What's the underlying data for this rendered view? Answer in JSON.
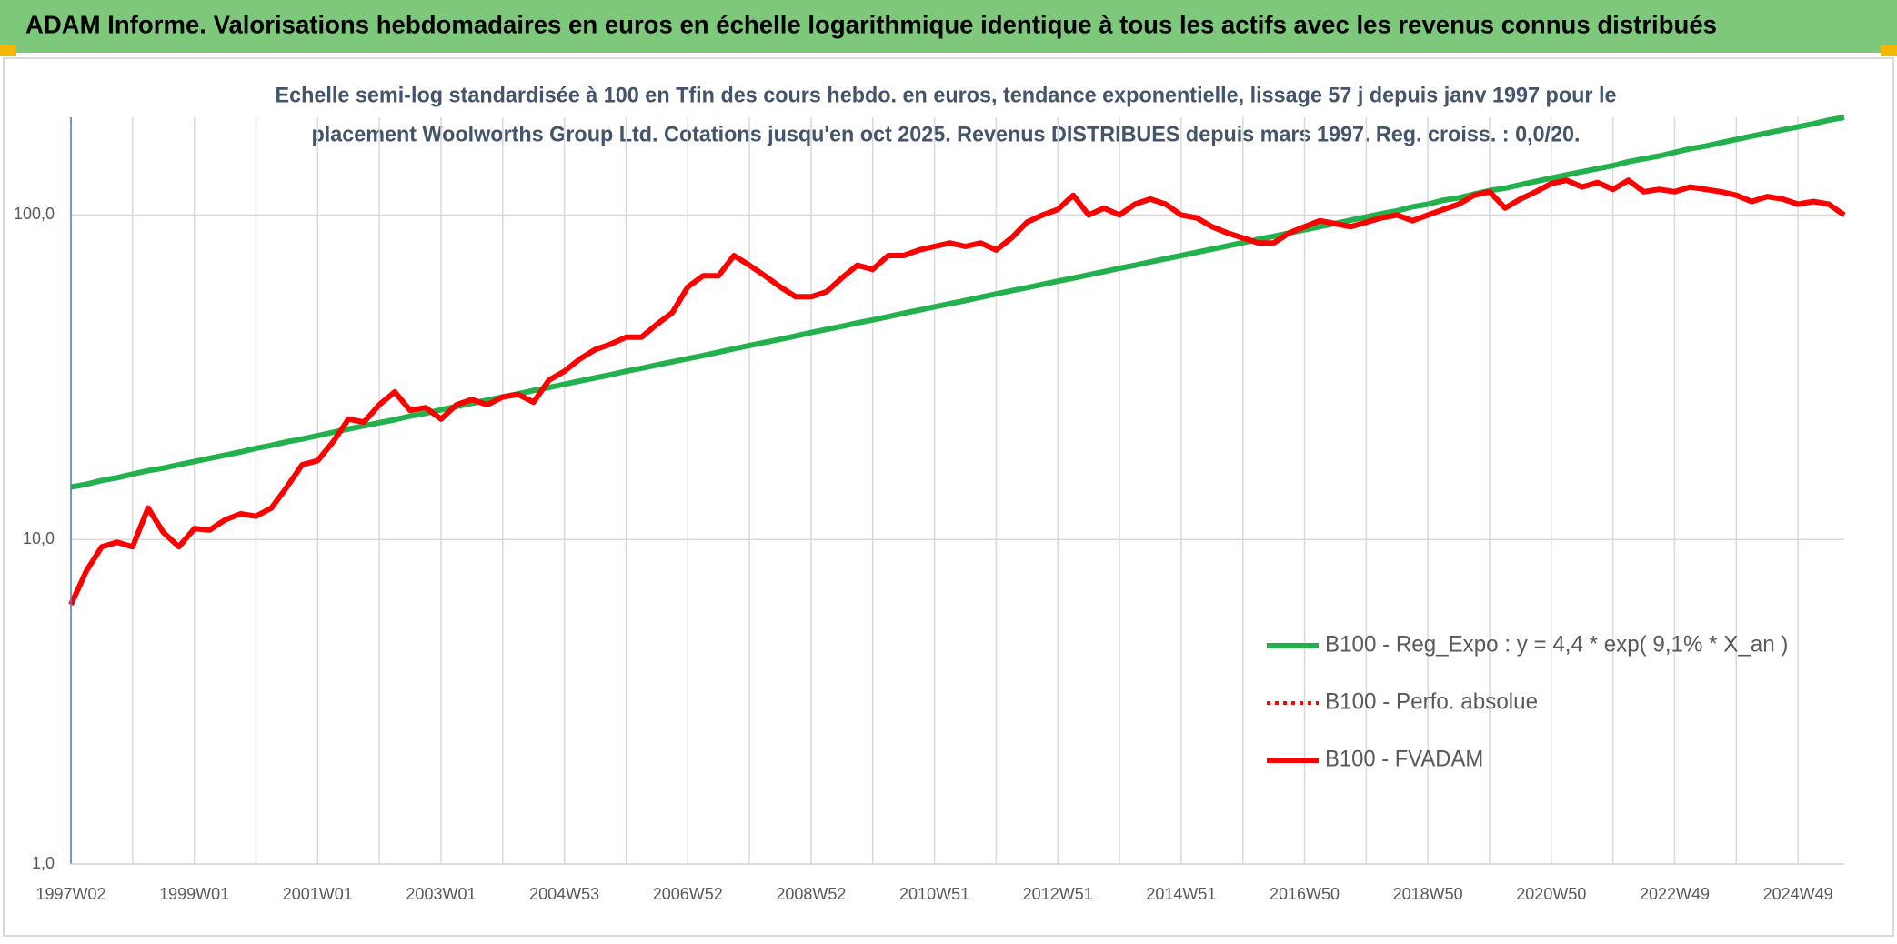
{
  "chart_data": {
    "type": "line",
    "title": "ADAM Informe. Valorisations hebdomadaires en euros en échelle logarithmique identique à tous les actifs avec les revenus connus distribués",
    "subtitle": [
      "Echelle semi-log standardisée à 100 en Tfin des cours hebdo. en euros, tendance exponentielle, lissage 57 j depuis janv 1997 pour le",
      "placement Woolworths Group Ltd. Cotations jusqu'en oct 2025. Revenus DISTRIBUES depuis mars 1997. Reg. croiss. : 0,0/20."
    ],
    "categories": [
      "1997W02",
      null,
      null,
      null,
      null,
      null,
      null,
      null,
      "1999W01",
      null,
      null,
      null,
      null,
      null,
      null,
      null,
      "2001W01",
      null,
      null,
      null,
      null,
      null,
      null,
      null,
      "2003W01",
      null,
      null,
      null,
      null,
      null,
      null,
      null,
      "2004W53",
      null,
      null,
      null,
      null,
      null,
      null,
      null,
      "2006W52",
      null,
      null,
      null,
      null,
      null,
      null,
      null,
      "2008W52",
      null,
      null,
      null,
      null,
      null,
      null,
      null,
      "2010W51",
      null,
      null,
      null,
      null,
      null,
      null,
      null,
      "2012W51",
      null,
      null,
      null,
      null,
      null,
      null,
      null,
      "2014W51",
      null,
      null,
      null,
      null,
      null,
      null,
      null,
      "2016W50",
      null,
      null,
      null,
      null,
      null,
      null,
      null,
      "2018W50",
      null,
      null,
      null,
      null,
      null,
      null,
      null,
      "2020W50",
      null,
      null,
      null,
      null,
      null,
      null,
      null,
      "2022W49",
      null,
      null,
      null,
      null,
      null,
      null,
      null,
      "2024W49",
      null,
      null,
      null
    ],
    "log_scale": true,
    "grid": true,
    "ylim": [
      1,
      200
    ],
    "yticks": [
      {
        "value": 1,
        "label": "1,0"
      },
      {
        "value": 10,
        "label": "10,0"
      },
      {
        "value": 100,
        "label": "100,0"
      }
    ],
    "series": [
      {
        "name": "B100 - Reg_Expo : y = 4,4 * exp( 9,1% *  X_an )",
        "color": "#22b14c",
        "dash": false,
        "values": [
          14.5,
          14.8,
          15.2,
          15.5,
          15.9,
          16.3,
          16.6,
          17.0,
          17.4,
          17.8,
          18.2,
          18.6,
          19.1,
          19.5,
          20.0,
          20.4,
          20.9,
          21.4,
          21.9,
          22.4,
          22.9,
          23.4,
          24.0,
          24.5,
          25.1,
          25.7,
          26.3,
          26.9,
          27.5,
          28.1,
          28.8,
          29.4,
          30.1,
          30.8,
          31.5,
          32.2,
          33.0,
          33.7,
          34.5,
          35.3,
          36.1,
          36.9,
          37.8,
          38.7,
          39.6,
          40.5,
          41.4,
          42.4,
          43.4,
          44.4,
          45.4,
          46.5,
          47.5,
          48.6,
          49.8,
          50.9,
          52.1,
          53.3,
          54.5,
          55.8,
          57.1,
          58.4,
          59.7,
          61.1,
          62.5,
          63.9,
          65.4,
          66.9,
          68.5,
          70.0,
          71.7,
          73.3,
          75.0,
          76.7,
          78.5,
          80.3,
          82.2,
          84.1,
          86.0,
          88.0,
          90.0,
          92.1,
          94.2,
          96.4,
          98.6,
          101,
          103,
          106,
          108,
          111,
          113,
          116,
          119,
          121,
          124,
          127,
          130,
          133,
          136,
          139,
          142,
          146,
          149,
          152,
          156,
          160,
          163,
          167,
          171,
          175,
          179,
          183,
          187,
          191,
          196,
          200
        ]
      },
      {
        "name": "B100 - Perfo. absolue",
        "color": "#ff0000",
        "dash": true,
        "values": [
          6.3,
          8.0,
          9.5,
          9.8,
          9.5,
          12.5,
          10.5,
          9.5,
          10.8,
          10.7,
          11.5,
          12.0,
          11.8,
          12.5,
          14.5,
          17,
          17.5,
          20,
          23.5,
          23,
          26,
          28.5,
          25,
          25.5,
          23.5,
          26,
          27,
          26,
          27.5,
          28,
          26.5,
          31,
          33,
          36,
          38.5,
          40,
          42,
          42,
          46,
          50,
          60,
          65,
          65,
          75,
          70,
          65,
          60,
          56,
          56,
          58,
          64,
          70,
          68,
          75,
          75,
          78,
          80,
          82,
          80,
          82,
          78,
          85,
          95,
          100,
          104,
          115,
          100,
          105,
          100,
          108,
          112,
          108,
          100,
          98,
          92,
          88,
          85,
          82,
          82,
          88,
          92,
          96,
          94,
          92,
          95,
          98,
          100,
          96,
          100,
          104,
          108,
          115,
          118,
          105,
          112,
          118,
          125,
          128,
          122,
          126,
          120,
          128,
          118,
          120,
          118,
          122,
          120,
          118,
          115,
          110,
          114,
          112,
          108,
          110,
          108,
          100
        ]
      },
      {
        "name": "B100 - FVADAM",
        "color": "#ff0000",
        "dash": false,
        "values": [
          6.3,
          8.0,
          9.5,
          9.8,
          9.5,
          12.5,
          10.5,
          9.5,
          10.8,
          10.7,
          11.5,
          12.0,
          11.8,
          12.5,
          14.5,
          17,
          17.5,
          20,
          23.5,
          23,
          26,
          28.5,
          25,
          25.5,
          23.5,
          26,
          27,
          26,
          27.5,
          28,
          26.5,
          31,
          33,
          36,
          38.5,
          40,
          42,
          42,
          46,
          50,
          60,
          65,
          65,
          75,
          70,
          65,
          60,
          56,
          56,
          58,
          64,
          70,
          68,
          75,
          75,
          78,
          80,
          82,
          80,
          82,
          78,
          85,
          95,
          100,
          104,
          115,
          100,
          105,
          100,
          108,
          112,
          108,
          100,
          98,
          92,
          88,
          85,
          82,
          82,
          88,
          92,
          96,
          94,
          92,
          95,
          98,
          100,
          96,
          100,
          104,
          108,
          115,
          118,
          105,
          112,
          118,
          125,
          128,
          122,
          126,
          120,
          128,
          118,
          120,
          118,
          122,
          120,
          118,
          115,
          110,
          114,
          112,
          108,
          110,
          108,
          100
        ]
      }
    ]
  }
}
